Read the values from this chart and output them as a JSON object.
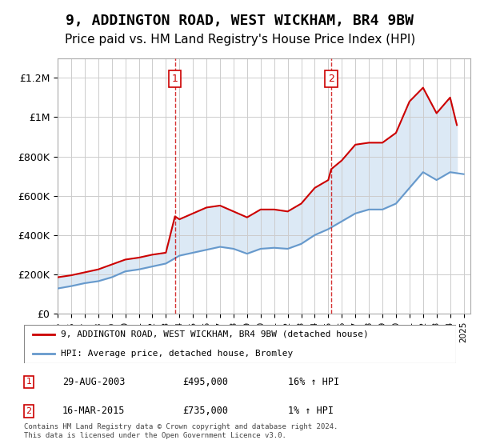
{
  "title": "9, ADDINGTON ROAD, WEST WICKHAM, BR4 9BW",
  "subtitle": "Price paid vs. HM Land Registry's House Price Index (HPI)",
  "title_fontsize": 13,
  "subtitle_fontsize": 11,
  "background_color": "#ffffff",
  "plot_bg_color": "#ffffff",
  "xlabel": "",
  "ylabel": "",
  "ylim": [
    0,
    1300000
  ],
  "xlim_start": 1995,
  "xlim_end": 2025.5,
  "yticks": [
    0,
    200000,
    400000,
    600000,
    800000,
    1000000,
    1200000
  ],
  "ytick_labels": [
    "£0",
    "£200K",
    "£400K",
    "£600K",
    "£800K",
    "£1M",
    "£1.2M"
  ],
  "grid_color": "#cccccc",
  "hpi_color": "#6699cc",
  "property_color": "#cc0000",
  "shade_color": "#dce9f5",
  "vline_color": "#cc0000",
  "vline_x": [
    2003.67,
    2015.21
  ],
  "vline_labels": [
    "1",
    "2"
  ],
  "transactions": [
    {
      "label": "1",
      "date": "29-AUG-2003",
      "price": "£495,000",
      "hpi": "16% ↑ HPI"
    },
    {
      "label": "2",
      "date": "16-MAR-2015",
      "price": "£735,000",
      "hpi": "1% ↑ HPI"
    }
  ],
  "legend_entries": [
    {
      "label": "9, ADDINGTON ROAD, WEST WICKHAM, BR4 9BW (detached house)",
      "color": "#cc0000",
      "lw": 2
    },
    {
      "label": "HPI: Average price, detached house, Bromley",
      "color": "#6699cc",
      "lw": 2
    }
  ],
  "footnote": "Contains HM Land Registry data © Crown copyright and database right 2024.\nThis data is licensed under the Open Government Licence v3.0.",
  "hpi_years": [
    1995,
    1996,
    1997,
    1998,
    1999,
    2000,
    2001,
    2002,
    2003,
    2004,
    2005,
    2006,
    2007,
    2008,
    2009,
    2010,
    2011,
    2012,
    2013,
    2014,
    2015,
    2016,
    2017,
    2018,
    2019,
    2020,
    2021,
    2022,
    2023,
    2024,
    2025
  ],
  "hpi_values": [
    128000,
    140000,
    155000,
    165000,
    185000,
    215000,
    225000,
    240000,
    255000,
    295000,
    310000,
    325000,
    340000,
    330000,
    305000,
    330000,
    335000,
    330000,
    355000,
    400000,
    430000,
    470000,
    510000,
    530000,
    530000,
    560000,
    640000,
    720000,
    680000,
    720000,
    710000
  ],
  "prop_years": [
    1995,
    1996,
    1997,
    1998,
    1999,
    2000,
    2001,
    2002,
    2003,
    2003.67,
    2004,
    2005,
    2006,
    2007,
    2008,
    2009,
    2010,
    2011,
    2012,
    2013,
    2014,
    2015,
    2015.21,
    2016,
    2017,
    2018,
    2019,
    2020,
    2021,
    2022,
    2023,
    2024,
    2024.5
  ],
  "prop_values": [
    185000,
    195000,
    210000,
    225000,
    250000,
    275000,
    285000,
    300000,
    310000,
    495000,
    480000,
    510000,
    540000,
    550000,
    520000,
    490000,
    530000,
    530000,
    520000,
    560000,
    640000,
    680000,
    735000,
    780000,
    860000,
    870000,
    870000,
    920000,
    1080000,
    1150000,
    1020000,
    1100000,
    960000
  ]
}
